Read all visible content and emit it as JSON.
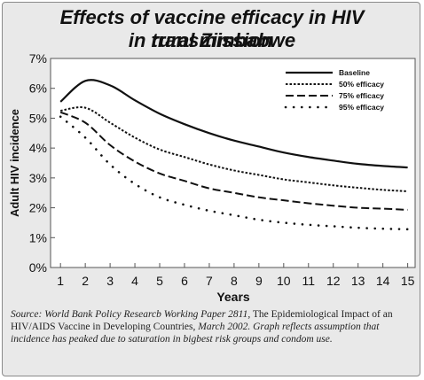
{
  "title_line1": "Effects of vaccine efficacy in HIV transmission",
  "title_line2": "in rural Zimbabwe",
  "source": {
    "part1_italic": "Source: World Bank Policy Researcb Working Paper 2811,",
    "part2": " The Epidemiological Impact of an HIV/AIDS Vaccine in Developing Countries,",
    "part3_italic": " March 2002. Graph reflects assumption that incidence has peaked due to saturation in bigbest risk groups and condom use."
  },
  "chart_data": {
    "type": "line",
    "title": "Effects of vaccine efficacy in HIV transmission in rural Zimbabwe",
    "xlabel": "Years",
    "ylabel": "Adult HIV incidence",
    "x": [
      1,
      2,
      3,
      4,
      5,
      6,
      7,
      8,
      9,
      10,
      11,
      12,
      13,
      14,
      15
    ],
    "xlim": [
      0.6,
      15.3
    ],
    "ylim": [
      0,
      7
    ],
    "yticks": [
      0,
      1,
      2,
      3,
      4,
      5,
      6,
      7
    ],
    "ytick_labels": [
      "0%",
      "1%",
      "2%",
      "3%",
      "4%",
      "5%",
      "6%",
      "7%"
    ],
    "legend_position": "top-right",
    "series": [
      {
        "name": "Baseline",
        "style": "solid",
        "values": [
          5.55,
          6.25,
          6.1,
          5.6,
          5.15,
          4.8,
          4.5,
          4.25,
          4.05,
          3.85,
          3.7,
          3.58,
          3.47,
          3.4,
          3.35
        ]
      },
      {
        "name": "50% efficacy",
        "style": "dotted",
        "values": [
          5.25,
          5.35,
          4.85,
          4.35,
          3.95,
          3.7,
          3.45,
          3.25,
          3.1,
          2.95,
          2.85,
          2.75,
          2.67,
          2.6,
          2.55
        ]
      },
      {
        "name": "75% efficacy",
        "style": "dashed",
        "values": [
          5.2,
          4.85,
          4.1,
          3.55,
          3.15,
          2.9,
          2.65,
          2.5,
          2.35,
          2.25,
          2.15,
          2.07,
          2.0,
          1.97,
          1.93
        ]
      },
      {
        "name": "95% efficacy",
        "style": "dots",
        "values": [
          5.05,
          4.35,
          3.45,
          2.8,
          2.35,
          2.1,
          1.9,
          1.75,
          1.6,
          1.5,
          1.43,
          1.38,
          1.33,
          1.3,
          1.28
        ]
      }
    ]
  }
}
